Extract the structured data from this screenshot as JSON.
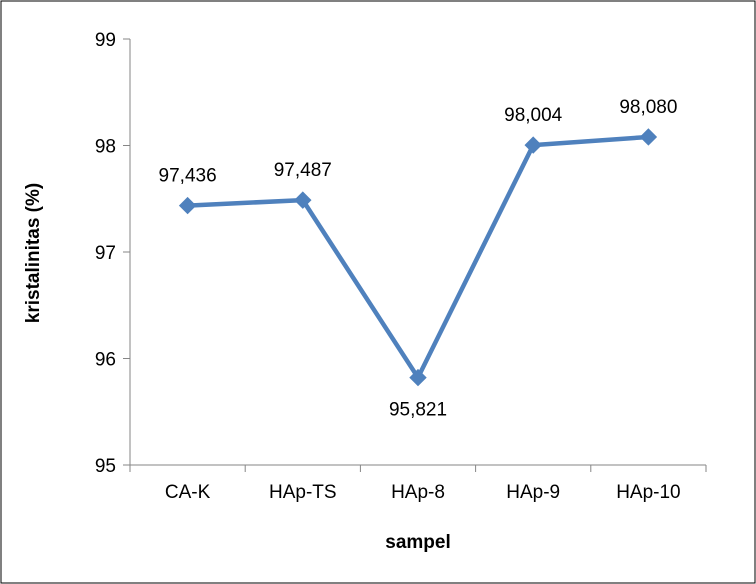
{
  "chart_data": {
    "type": "line",
    "title": "",
    "xlabel": "sampel",
    "ylabel": "kristalinitas (%)",
    "categories": [
      "CA-K",
      "HAp-TS",
      "HAp-8",
      "HAp-9",
      "HAp-10"
    ],
    "series": [
      {
        "values": [
          97.436,
          97.487,
          95.821,
          98.004,
          98.08
        ]
      }
    ],
    "data_labels": [
      "97,436",
      "97,487",
      "95,821",
      "98,004",
      "98,080"
    ],
    "ylim": [
      95,
      99
    ],
    "yticks": [
      95,
      96,
      97,
      98,
      99
    ],
    "ytick_labels": [
      "95",
      "96",
      "97",
      "98",
      "99"
    ],
    "grid": false,
    "legend": "none",
    "colors": {
      "series": "#4F81BD",
      "axis": "#868686",
      "frame": "#000000"
    },
    "marker": "diamond"
  }
}
